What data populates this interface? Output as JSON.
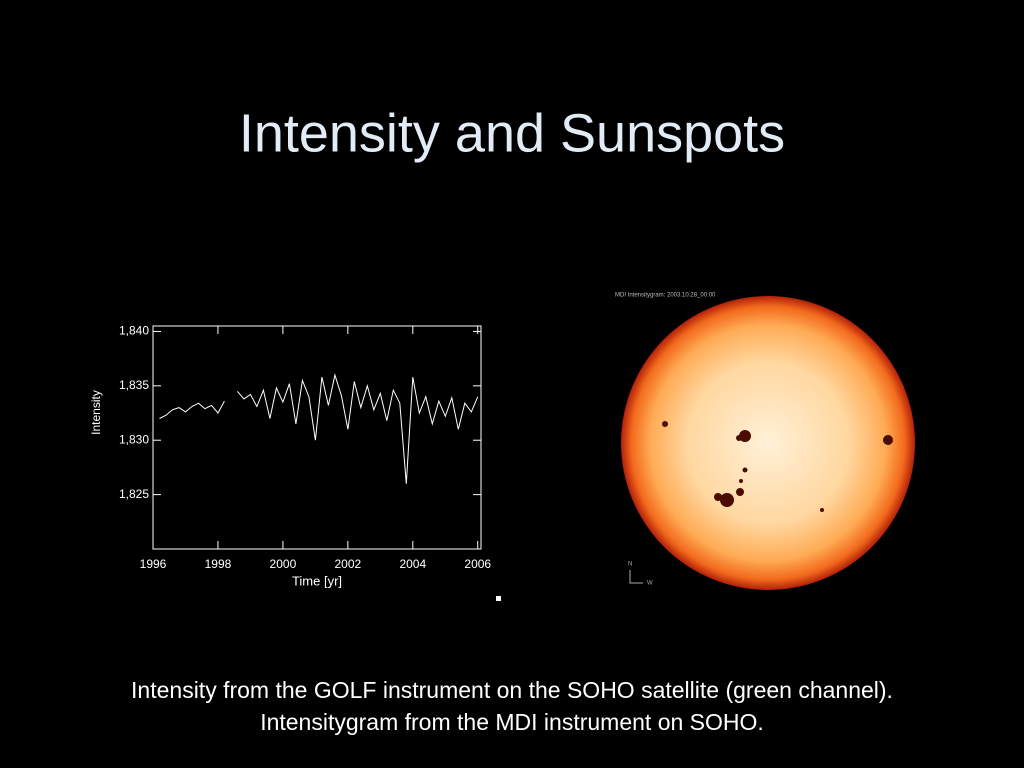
{
  "title": "Intensity and Sunspots",
  "caption": [
    "Intensity from the GOLF instrument on the SOHO satellite (green channel).",
    "Intensitygram from the MDI instrument on SOHO."
  ],
  "image": {
    "label": "MDI Intensitygram:  2003.10.28_00:00",
    "compass": [
      "N",
      "W"
    ]
  },
  "chart_data": {
    "type": "line",
    "xlabel": "Time [yr]",
    "ylabel": "Intensity",
    "xlim": [
      1996,
      2006.1
    ],
    "ylim": [
      1820,
      1840.5
    ],
    "xticks": [
      1996,
      1998,
      2000,
      2002,
      2004,
      2006
    ],
    "yticks": [
      {
        "value": 1825,
        "label": "1,825"
      },
      {
        "value": 1830,
        "label": "1,830"
      },
      {
        "value": 1835,
        "label": "1,835"
      },
      {
        "value": 1840,
        "label": "1,840"
      }
    ],
    "series": [
      {
        "color": "#ffffff",
        "x": [
          1996.2,
          1996.4,
          1996.6,
          1996.8,
          1997.0,
          1997.2,
          1997.4,
          1997.6,
          1997.8,
          1998.0,
          1998.2,
          1998.4,
          1998.6,
          1998.8,
          1999.0,
          1999.2,
          1999.4,
          1999.6,
          1999.8,
          2000.0,
          2000.2,
          2000.4,
          2000.6,
          2000.8,
          2001.0,
          2001.2,
          2001.4,
          2001.6,
          2001.8,
          2002.0,
          2002.2,
          2002.4,
          2002.6,
          2002.8,
          2003.0,
          2003.2,
          2003.4,
          2003.6,
          2003.8,
          2004.0,
          2004.2,
          2004.4,
          2004.6,
          2004.8,
          2005.0,
          2005.2,
          2005.4,
          2005.6,
          2005.8,
          2006.0
        ],
        "values": [
          1832.0,
          1832.3,
          1832.8,
          1833.0,
          1832.6,
          1833.1,
          1833.4,
          1832.9,
          1833.2,
          1832.5,
          1833.6,
          null,
          1834.5,
          1833.8,
          1834.2,
          1833.1,
          1834.6,
          1832.0,
          1834.8,
          1833.5,
          1835.2,
          1831.5,
          1835.5,
          1834.0,
          1830.0,
          1835.8,
          1833.2,
          1836.0,
          1834.1,
          1831.0,
          1835.4,
          1833.0,
          1835.0,
          1832.8,
          1834.3,
          1831.8,
          1834.6,
          1833.4,
          1826.0,
          1835.8,
          1832.5,
          1834.0,
          1831.5,
          1833.6,
          1832.2,
          1833.9,
          1831.0,
          1833.4,
          1832.6,
          1834.0
        ]
      }
    ]
  }
}
